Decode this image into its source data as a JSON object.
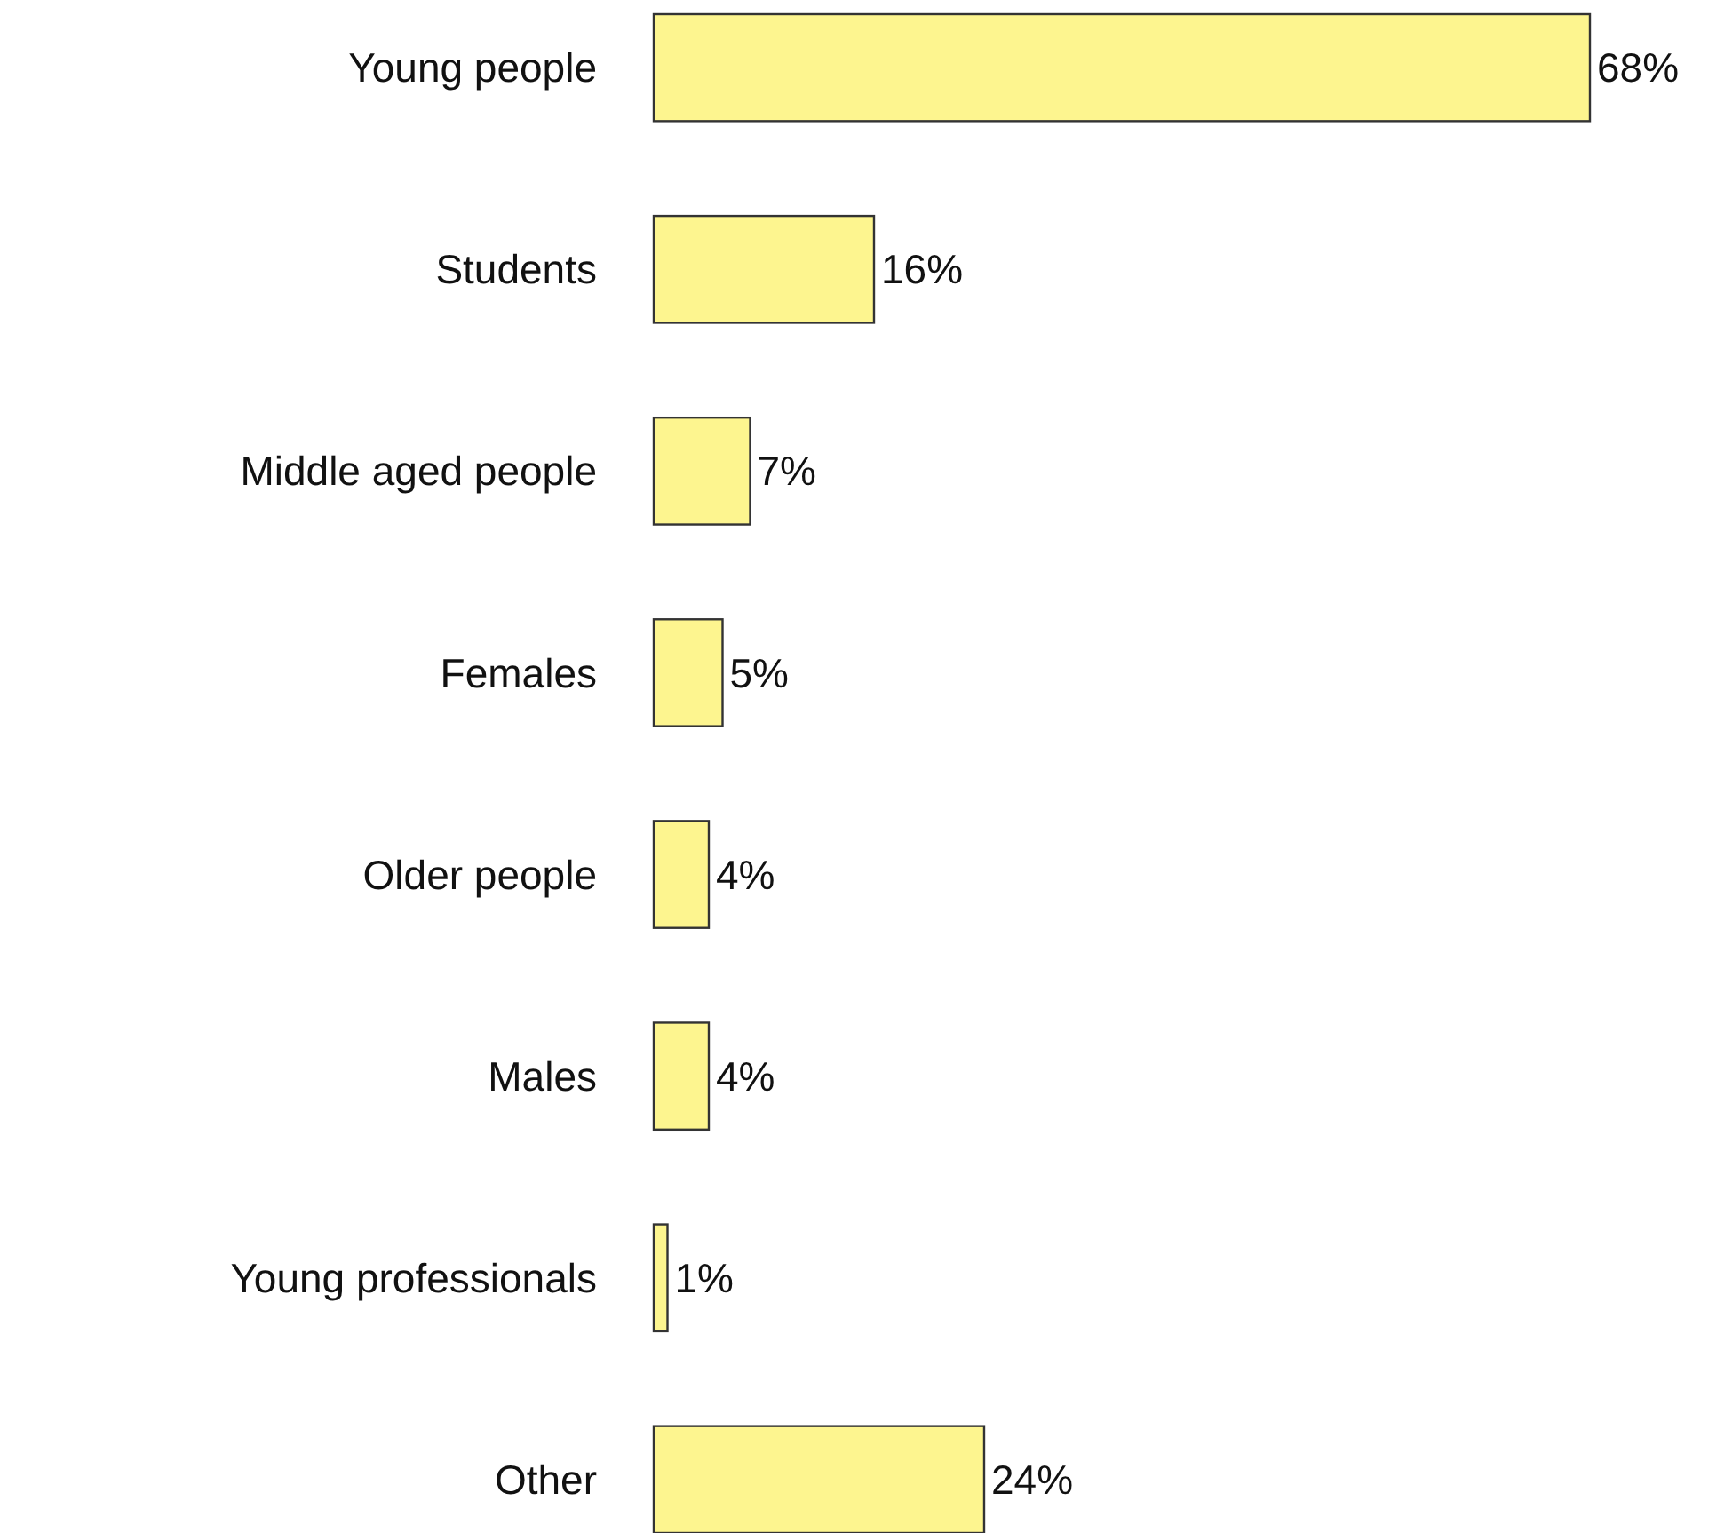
{
  "chart_data": {
    "type": "bar",
    "orientation": "horizontal",
    "categories": [
      "Young people",
      "Students",
      "Middle aged people",
      "Females",
      "Older people",
      "Males",
      "Young professionals",
      "Other"
    ],
    "values": [
      68,
      16,
      7,
      5,
      4,
      4,
      1,
      24
    ],
    "color": "#fdf58f",
    "value_labels": [
      "68%",
      "16%",
      "7%",
      "5%",
      "4%",
      "4%",
      "1%",
      "24%"
    ]
  }
}
